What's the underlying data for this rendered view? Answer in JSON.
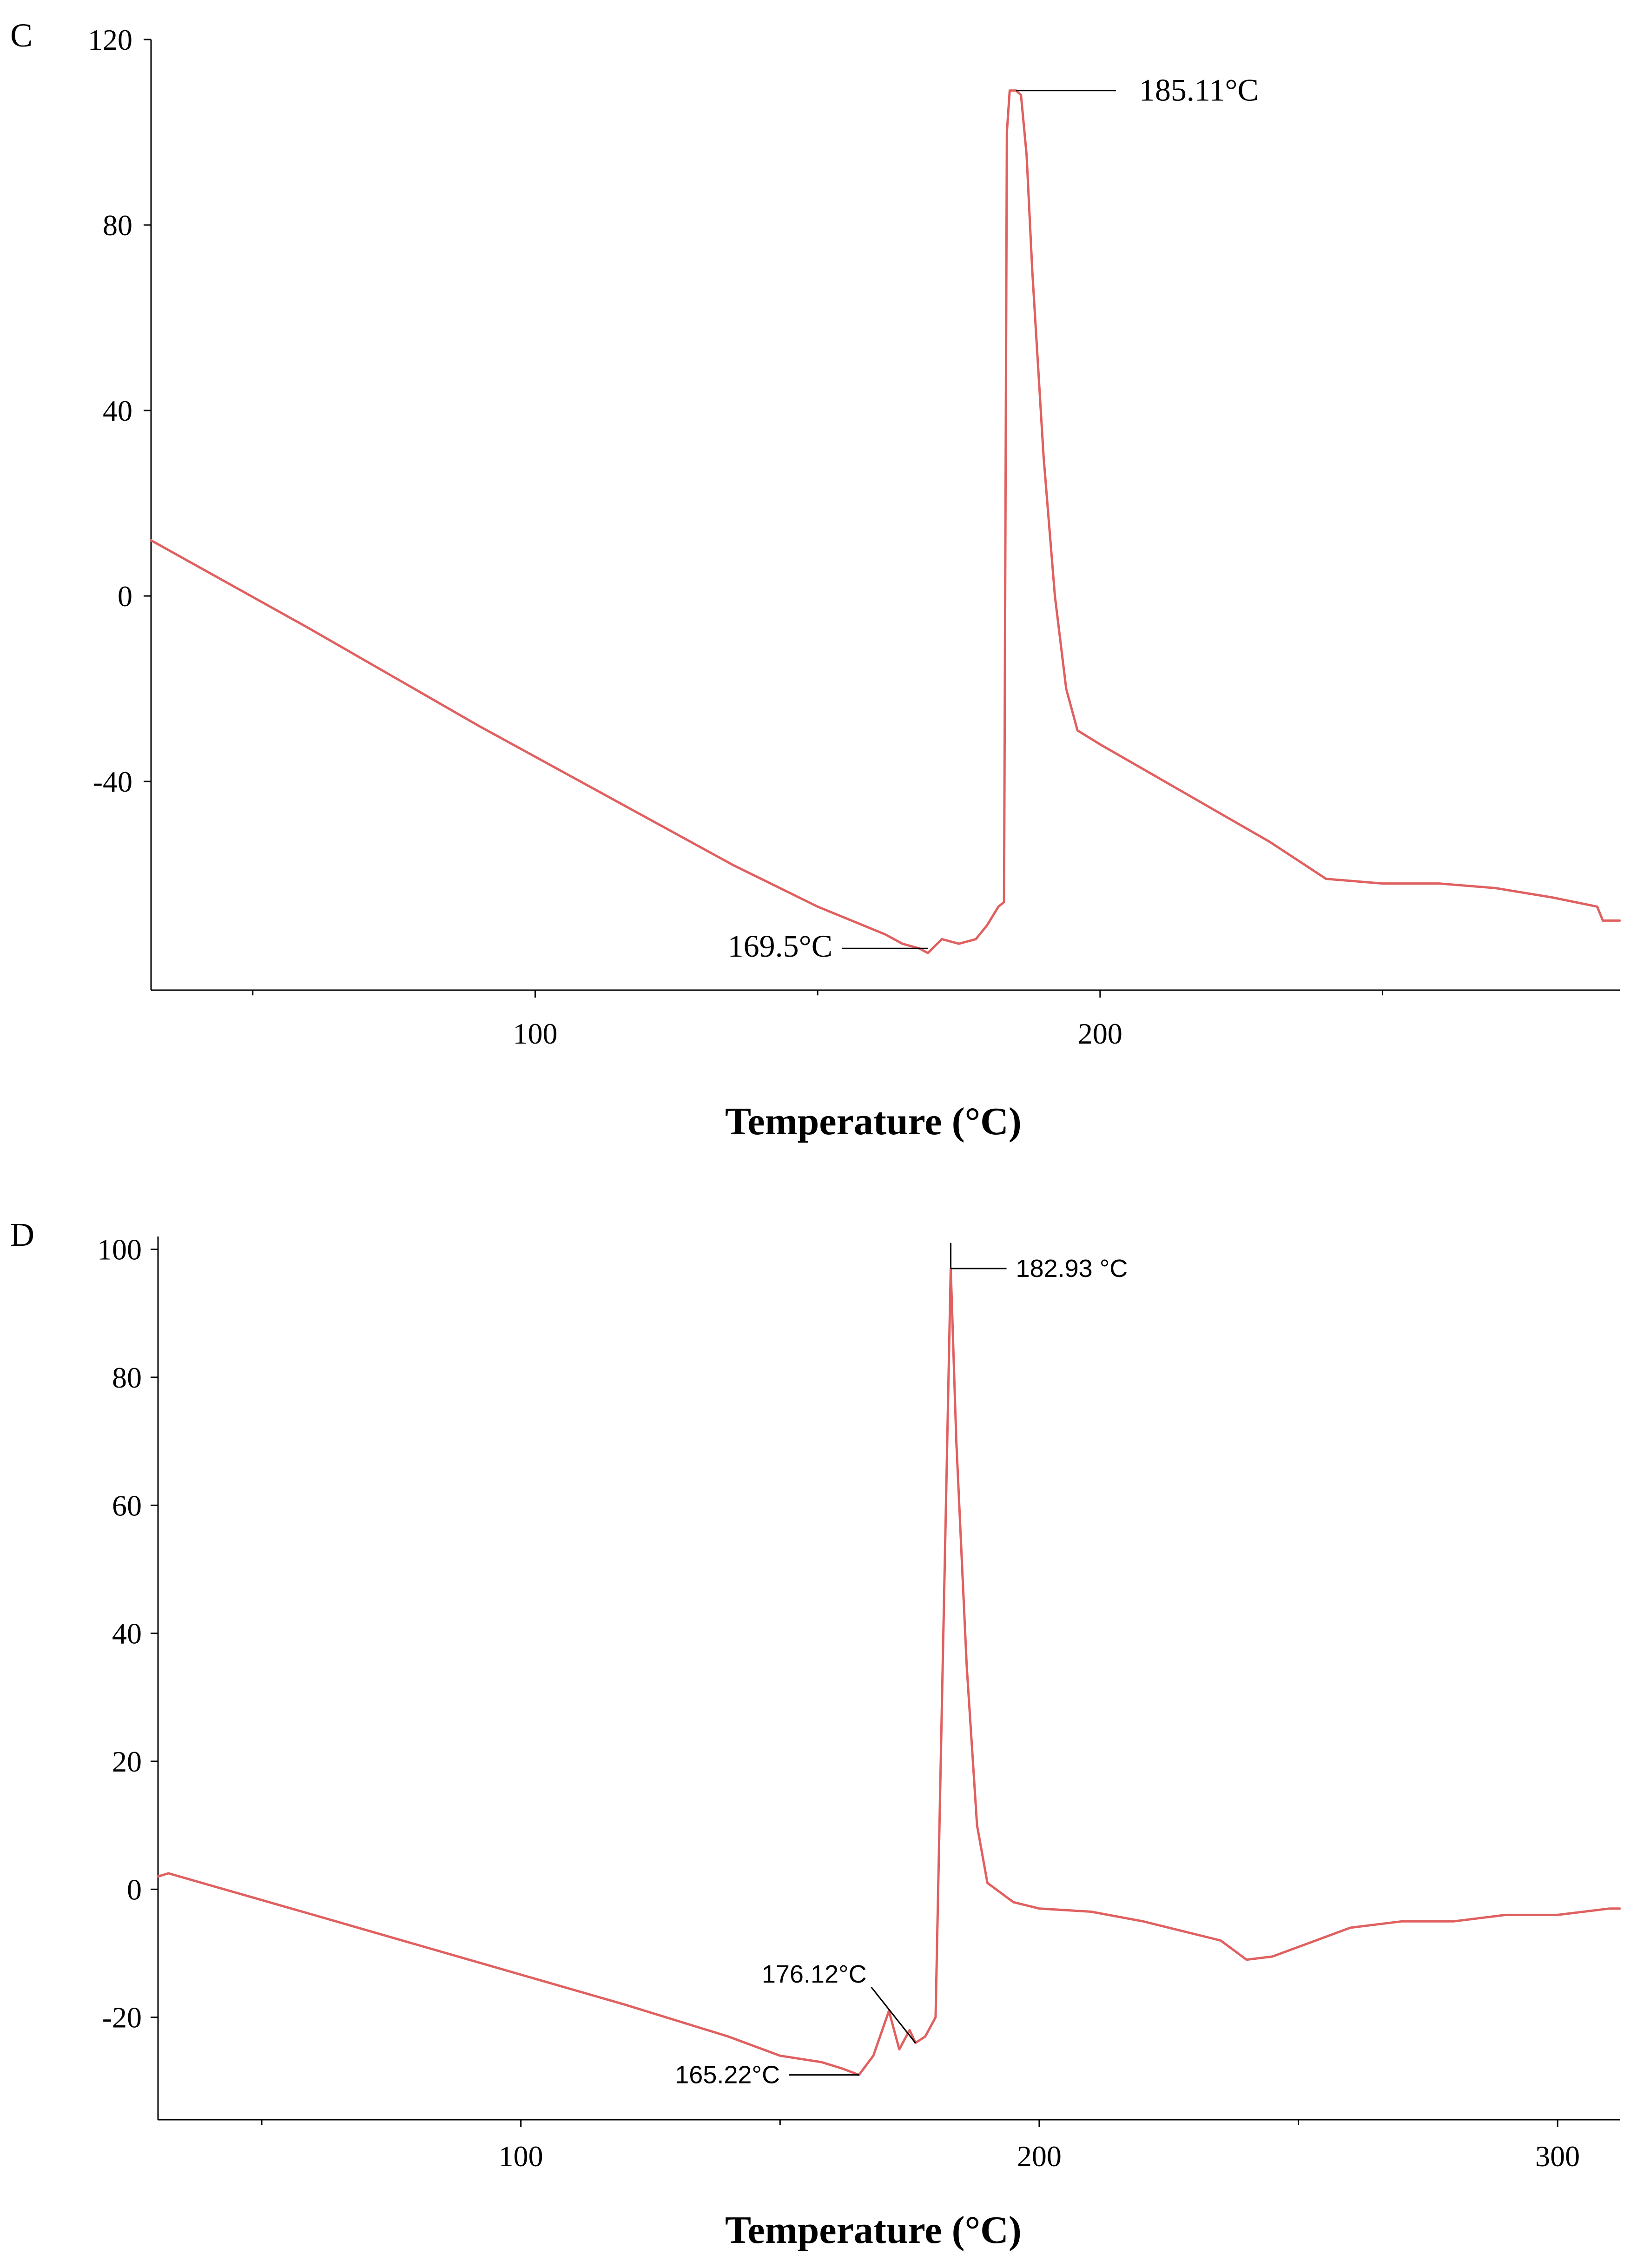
{
  "chart_data": [
    {
      "panel_label": "C",
      "type": "line",
      "xlabel": "Temperature (°C)",
      "ylabel": "",
      "xlim": [
        32,
        292
      ],
      "ylim": [
        -85,
        120
      ],
      "x_ticks": [
        100,
        200
      ],
      "x_minor_ticks": [
        50,
        150,
        250
      ],
      "y_ticks": [
        120,
        80,
        40,
        0,
        -40
      ],
      "y_tick_labels": [
        "120",
        "80",
        "40",
        "0",
        "-40"
      ],
      "line_color": "#e06060",
      "series": [
        {
          "name": "DSC curve C",
          "x": [
            32,
            60,
            90,
            120,
            135,
            150,
            158,
            162,
            165,
            168,
            169.5,
            172,
            175,
            178,
            180,
            181,
            182,
            183,
            183.5,
            184,
            185.11,
            186,
            187,
            188,
            190,
            192,
            194,
            196,
            200,
            210,
            220,
            230,
            240,
            250,
            260,
            270,
            280,
            288,
            289,
            292
          ],
          "y": [
            12,
            -7,
            -28,
            -48,
            -58,
            -67,
            -71,
            -73,
            -75,
            -76,
            -77,
            -74,
            -75,
            -74,
            -71,
            -69,
            -67,
            -66,
            100,
            109,
            109,
            108,
            95,
            70,
            30,
            0,
            -20,
            -29,
            -32,
            -39,
            -46,
            -53,
            -61,
            -62,
            -62,
            -63,
            -65,
            -67,
            -70,
            -70
          ]
        }
      ],
      "annotations": [
        {
          "label": "185.11°C",
          "x": 185.11,
          "y": 109
        },
        {
          "label": "169.5°C",
          "x": 169.5,
          "y": -76
        }
      ]
    },
    {
      "panel_label": "D",
      "type": "line",
      "xlabel": "Temperature (°C)",
      "ylabel": "",
      "xlim": [
        30,
        312
      ],
      "ylim": [
        -36,
        102
      ],
      "x_ticks": [
        100,
        200,
        300
      ],
      "x_minor_ticks": [
        50,
        150,
        250
      ],
      "y_ticks": [
        100,
        80,
        60,
        40,
        20,
        0,
        -20
      ],
      "y_tick_labels": [
        "100",
        "80",
        "60",
        "40",
        "20",
        "0",
        "-20"
      ],
      "line_color": "#e06060",
      "series": [
        {
          "name": "DSC curve D",
          "x": [
            30,
            32,
            60,
            90,
            120,
            140,
            150,
            158,
            162,
            165.22,
            168,
            171,
            173,
            175,
            176.12,
            178,
            180,
            182.93,
            184,
            186,
            188,
            190,
            195,
            200,
            210,
            220,
            235,
            240,
            245,
            250,
            260,
            270,
            280,
            290,
            300,
            310,
            312
          ],
          "y": [
            2,
            2.5,
            -4,
            -11,
            -18,
            -23,
            -26,
            -27,
            -28,
            -29,
            -26,
            -19,
            -25,
            -22,
            -24,
            -23,
            -20,
            97,
            70,
            35,
            10,
            1,
            -2,
            -3,
            -3.5,
            -5,
            -8,
            -11,
            -10.5,
            -9,
            -6,
            -5,
            -5,
            -4,
            -4,
            -3,
            -3
          ]
        }
      ],
      "annotations": [
        {
          "label": "182.93 °C",
          "x": 182.93,
          "y": 97
        },
        {
          "label": "176.12°C",
          "x": 176.12,
          "y": -24
        },
        {
          "label": "165.22°C",
          "x": 165.22,
          "y": -29
        }
      ]
    }
  ]
}
